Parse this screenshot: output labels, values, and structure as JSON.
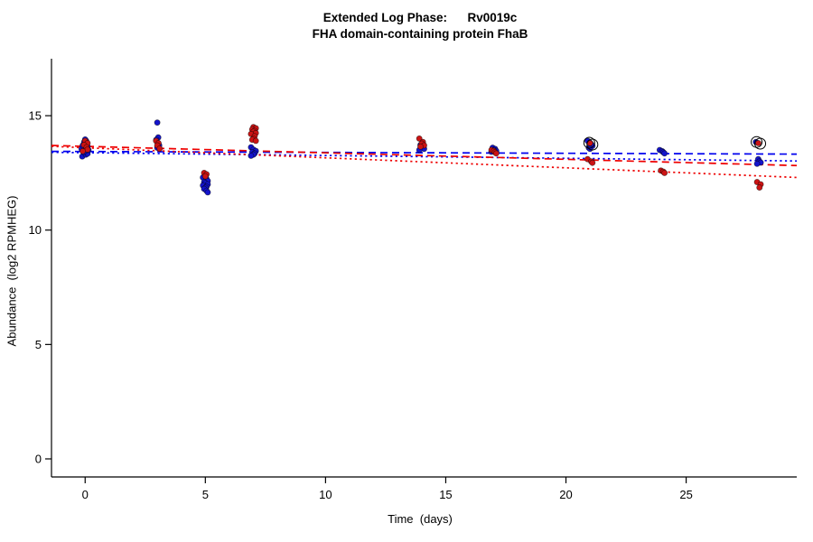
{
  "title": {
    "line1": "Extended Log Phase:      Rv0019c",
    "line2": "FHA domain-containing protein FhaB"
  },
  "axes": {
    "xlabel": "Time  (days)",
    "ylabel": "Abundance  (log2 RPMHEG)",
    "xticks": [
      0,
      5,
      10,
      15,
      20,
      25
    ],
    "yticks": [
      0,
      5,
      10,
      15
    ],
    "xlim": [
      -1.4,
      29.6
    ],
    "ylim": [
      -0.79,
      17.49
    ]
  },
  "chart_data": {
    "type": "scatter",
    "title": "Extended Log Phase: Rv0019c — FHA domain-containing protein FhaB",
    "xlabel": "Time  (days)",
    "ylabel": "Abundance  (log2 RPMHEG)",
    "xlim": [
      -1.4,
      29.6
    ],
    "ylim": [
      -0.79,
      17.49
    ],
    "grid": false,
    "series": [
      {
        "name": "series-blue",
        "color": "#1414CC",
        "points": [
          [
            -0.12,
            13.22
          ],
          [
            0.03,
            13.3
          ],
          [
            0.1,
            13.34
          ],
          [
            -0.06,
            13.4
          ],
          [
            0.0,
            13.46
          ],
          [
            0.14,
            13.5
          ],
          [
            -0.15,
            13.55
          ],
          [
            0.05,
            13.6
          ],
          [
            0.1,
            13.66
          ],
          [
            -0.1,
            13.7
          ],
          [
            0.0,
            13.75
          ],
          [
            0.08,
            13.8
          ],
          [
            -0.04,
            13.85
          ],
          [
            0.04,
            13.9
          ],
          [
            0.0,
            13.96
          ],
          [
            3.0,
            14.7
          ],
          [
            3.04,
            14.05
          ],
          [
            2.96,
            13.95
          ],
          [
            3.08,
            13.7
          ],
          [
            3.0,
            13.6
          ],
          [
            4.9,
            12.3
          ],
          [
            5.04,
            12.25
          ],
          [
            5.1,
            12.15
          ],
          [
            4.95,
            12.1
          ],
          [
            5.0,
            12.05
          ],
          [
            5.1,
            12.0
          ],
          [
            4.9,
            11.95
          ],
          [
            5.05,
            11.9
          ],
          [
            5.0,
            11.85
          ],
          [
            4.95,
            11.8
          ],
          [
            5.05,
            11.72
          ],
          [
            5.1,
            11.65
          ],
          [
            6.9,
            13.62
          ],
          [
            7.0,
            13.52
          ],
          [
            7.1,
            13.46
          ],
          [
            6.95,
            13.4
          ],
          [
            7.05,
            13.35
          ],
          [
            7.0,
            13.3
          ],
          [
            6.9,
            13.25
          ],
          [
            13.95,
            13.72
          ],
          [
            14.05,
            13.66
          ],
          [
            14.0,
            13.6
          ],
          [
            14.1,
            13.55
          ],
          [
            13.9,
            13.5
          ],
          [
            16.95,
            13.6
          ],
          [
            17.05,
            13.55
          ],
          [
            17.0,
            13.5
          ],
          [
            17.1,
            13.46
          ],
          [
            16.9,
            13.42
          ],
          [
            20.9,
            13.9
          ],
          [
            21.0,
            13.82
          ],
          [
            21.05,
            13.75
          ],
          [
            21.1,
            13.68
          ],
          [
            20.95,
            13.6
          ],
          [
            21.0,
            13.55
          ],
          [
            23.9,
            13.5
          ],
          [
            24.0,
            13.45
          ],
          [
            24.05,
            13.4
          ],
          [
            24.1,
            13.35
          ],
          [
            27.9,
            13.85
          ],
          [
            28.0,
            13.1
          ],
          [
            28.05,
            13.0
          ],
          [
            28.1,
            12.95
          ],
          [
            27.95,
            12.9
          ]
        ]
      },
      {
        "name": "series-red",
        "color": "#CC1414",
        "points": [
          [
            0.0,
            13.9
          ],
          [
            0.1,
            13.8
          ],
          [
            -0.05,
            13.72
          ],
          [
            0.06,
            13.62
          ],
          [
            0.1,
            13.52
          ],
          [
            -0.1,
            13.45
          ],
          [
            2.95,
            13.9
          ],
          [
            3.05,
            13.8
          ],
          [
            3.0,
            13.7
          ],
          [
            3.1,
            13.56
          ],
          [
            4.95,
            12.5
          ],
          [
            5.05,
            12.44
          ],
          [
            5.0,
            12.35
          ],
          [
            7.0,
            14.5
          ],
          [
            7.1,
            14.45
          ],
          [
            6.95,
            14.4
          ],
          [
            7.05,
            14.34
          ],
          [
            7.0,
            14.3
          ],
          [
            7.1,
            14.24
          ],
          [
            6.9,
            14.2
          ],
          [
            7.05,
            14.1
          ],
          [
            7.0,
            14.0
          ],
          [
            6.95,
            13.95
          ],
          [
            7.1,
            13.9
          ],
          [
            13.9,
            14.0
          ],
          [
            14.05,
            13.85
          ],
          [
            14.0,
            13.78
          ],
          [
            14.1,
            13.7
          ],
          [
            13.95,
            13.65
          ],
          [
            16.9,
            13.5
          ],
          [
            17.0,
            13.46
          ],
          [
            17.05,
            13.4
          ],
          [
            17.1,
            13.35
          ],
          [
            21.0,
            13.8
          ],
          [
            20.9,
            13.1
          ],
          [
            21.05,
            13.0
          ],
          [
            21.1,
            12.94
          ],
          [
            23.95,
            12.6
          ],
          [
            24.05,
            12.55
          ],
          [
            24.1,
            12.5
          ],
          [
            28.0,
            13.8
          ],
          [
            27.95,
            12.1
          ],
          [
            28.1,
            12.0
          ],
          [
            28.05,
            11.86
          ]
        ]
      }
    ],
    "highlighted_points": {
      "marker": "open-circle",
      "color": "#000000",
      "points": [
        [
          20.97,
          13.82
        ],
        [
          21.1,
          13.74
        ],
        [
          27.93,
          13.85
        ],
        [
          28.08,
          13.78
        ]
      ]
    },
    "trend_lines": [
      {
        "series": "blue",
        "style": "dashed",
        "color": "#0000EE",
        "from": [
          -1.4,
          13.44
        ],
        "to": [
          29.6,
          13.32
        ]
      },
      {
        "series": "blue",
        "style": "dotted",
        "color": "#0000EE",
        "from": [
          -1.4,
          13.4
        ],
        "to": [
          29.6,
          13.02
        ]
      },
      {
        "series": "red",
        "style": "dashed",
        "color": "#EE0000",
        "from": [
          -1.4,
          13.7
        ],
        "to": [
          29.6,
          12.82
        ]
      },
      {
        "series": "red",
        "style": "dotted",
        "color": "#EE0000",
        "from": [
          -1.4,
          13.66
        ],
        "to": [
          29.6,
          12.3
        ]
      }
    ]
  }
}
